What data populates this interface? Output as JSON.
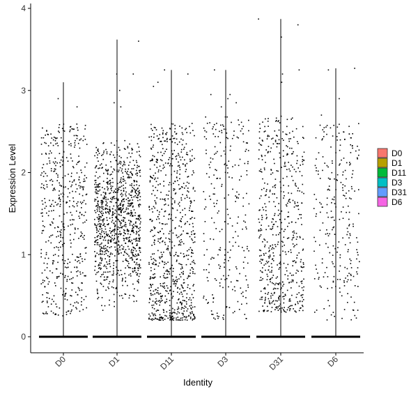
{
  "chart_data": {
    "type": "violin-jitter",
    "xlabel": "Identity",
    "ylabel": "Expression Level",
    "ylim": [
      -0.2,
      4.05
    ],
    "yticks": [
      0,
      1,
      2,
      3,
      4
    ],
    "categories": [
      "D0",
      "D1",
      "D11",
      "D3",
      "D31",
      "D6"
    ],
    "legend": {
      "placement": "right",
      "entries": [
        {
          "label": "D0",
          "color": "#F8766D"
        },
        {
          "label": "D1",
          "color": "#B79F00"
        },
        {
          "label": "D11",
          "color": "#00BA38"
        },
        {
          "label": "D3",
          "color": "#00BFC4"
        },
        {
          "label": "D31",
          "color": "#619CFF"
        },
        {
          "label": "D6",
          "color": "#F564E3"
        }
      ]
    },
    "groups": [
      {
        "name": "D0",
        "max": 3.1,
        "n_expr": 500,
        "low": 0.25,
        "high": 2.6,
        "dist": "uniform",
        "outliers": [
          2.9,
          2.8
        ]
      },
      {
        "name": "D1",
        "max": 3.62,
        "n_expr": 1000,
        "low": 0.3,
        "high": 2.5,
        "dist": "mid",
        "outliers": [
          3.6,
          3.2,
          3.2,
          2.85,
          2.8,
          3.0
        ]
      },
      {
        "name": "D11",
        "max": 3.25,
        "n_expr": 780,
        "low": 0.2,
        "high": 2.6,
        "dist": "low",
        "outliers": [
          3.25,
          3.2,
          3.1,
          3.05
        ]
      },
      {
        "name": "D3",
        "max": 3.25,
        "n_expr": 260,
        "low": 0.2,
        "high": 2.7,
        "dist": "uniform",
        "outliers": [
          3.25,
          2.95,
          2.95,
          2.9,
          2.85,
          2.8
        ]
      },
      {
        "name": "D31",
        "max": 3.87,
        "n_expr": 560,
        "low": 0.3,
        "high": 2.7,
        "dist": "low",
        "outliers": [
          3.87,
          3.8,
          3.65,
          3.25,
          3.2,
          3.1
        ]
      },
      {
        "name": "D6",
        "max": 3.27,
        "n_expr": 260,
        "low": 0.2,
        "high": 2.6,
        "dist": "uniform",
        "outliers": [
          3.27,
          3.25,
          2.9,
          2.7
        ]
      }
    ]
  }
}
